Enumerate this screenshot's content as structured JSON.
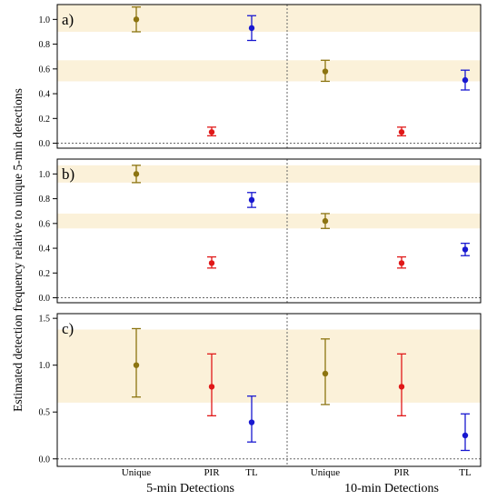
{
  "ylabel": "Estimated detection frequency relative to unique 5-min detections",
  "group_labels": [
    "5-min Detections",
    "10-min Detections"
  ],
  "colors": {
    "Unique": "#8c7410",
    "PIR": "#e01818",
    "TL": "#1818d0",
    "band": "#fbf1d9"
  },
  "chart_data": [
    {
      "type": "scatter",
      "panel_label": "a)",
      "ylim": [
        -0.04,
        1.12
      ],
      "yticks": [
        "0.0",
        "0.2",
        "0.4",
        "0.6",
        "0.8",
        "1.0"
      ],
      "bands": [
        [
          0.9,
          1.12
        ],
        [
          0.5,
          0.67
        ]
      ],
      "categories": [
        "Unique",
        "PIR",
        "TL",
        "Unique",
        "PIR",
        "TL"
      ],
      "series": [
        {
          "values": [
            1.0,
            0.09,
            0.93,
            0.58,
            0.09,
            0.51
          ],
          "lower": [
            0.9,
            0.06,
            0.83,
            0.5,
            0.06,
            0.43
          ],
          "upper": [
            1.1,
            0.13,
            1.03,
            0.67,
            0.13,
            0.59
          ]
        }
      ]
    },
    {
      "type": "scatter",
      "panel_label": "b)",
      "ylim": [
        -0.04,
        1.12
      ],
      "yticks": [
        "0.0",
        "0.2",
        "0.4",
        "0.6",
        "0.8",
        "1.0"
      ],
      "bands": [
        [
          0.93,
          1.07
        ],
        [
          0.56,
          0.68
        ]
      ],
      "categories": [
        "Unique",
        "PIR",
        "TL",
        "Unique",
        "PIR",
        "TL"
      ],
      "series": [
        {
          "values": [
            1.0,
            0.28,
            0.79,
            0.62,
            0.28,
            0.39
          ],
          "lower": [
            0.93,
            0.24,
            0.73,
            0.56,
            0.24,
            0.34
          ],
          "upper": [
            1.07,
            0.33,
            0.85,
            0.68,
            0.33,
            0.44
          ]
        }
      ]
    },
    {
      "type": "scatter",
      "panel_label": "c)",
      "ylim": [
        -0.08,
        1.55
      ],
      "yticks": [
        "0.0",
        "0.5",
        "1.0",
        "1.5"
      ],
      "bands": [
        [
          0.6,
          1.38
        ]
      ],
      "categories": [
        "Unique",
        "PIR",
        "TL",
        "Unique",
        "PIR",
        "TL"
      ],
      "series": [
        {
          "values": [
            1.0,
            0.77,
            0.39,
            0.91,
            0.77,
            0.25
          ],
          "lower": [
            0.66,
            0.46,
            0.18,
            0.58,
            0.46,
            0.09
          ],
          "upper": [
            1.39,
            1.12,
            0.67,
            1.28,
            1.12,
            0.48
          ]
        }
      ]
    }
  ]
}
